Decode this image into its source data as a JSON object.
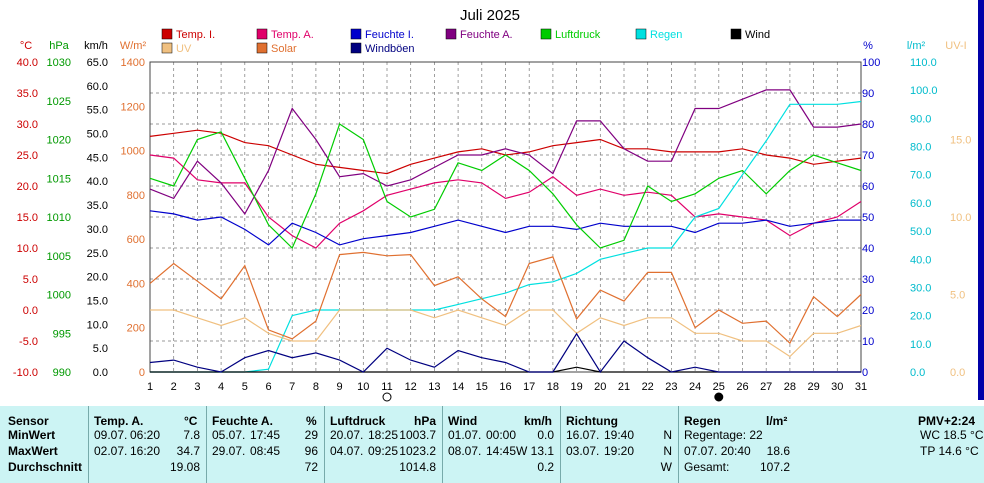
{
  "chart_data": {
    "type": "line",
    "title": "Juli 2025",
    "x": [
      1,
      2,
      3,
      4,
      5,
      6,
      7,
      8,
      9,
      10,
      11,
      12,
      13,
      14,
      15,
      16,
      17,
      18,
      19,
      20,
      21,
      22,
      23,
      24,
      25,
      26,
      27,
      28,
      29,
      30,
      31
    ],
    "x_ticks": [
      "1",
      "2",
      "3",
      "4",
      "5",
      "6",
      "7",
      "8",
      "9",
      "10",
      "11",
      "12",
      "13",
      "14",
      "15",
      "16",
      "17",
      "18",
      "19",
      "20",
      "21",
      "22",
      "23",
      "24",
      "25",
      "26",
      "27",
      "28",
      "29",
      "30",
      "31"
    ],
    "axes": [
      {
        "unit": "°C",
        "color": "#cc0000",
        "min": -10,
        "max": 40,
        "ticks": [
          "40.0",
          "35.0",
          "30.0",
          "25.0",
          "20.0",
          "15.0",
          "10.0",
          "5.0",
          "0.0",
          "-5.0",
          "-10.0"
        ]
      },
      {
        "unit": "hPa",
        "color": "#009900",
        "min": 990,
        "max": 1030,
        "ticks": [
          "1030",
          "1025",
          "1020",
          "1015",
          "1010",
          "1005",
          "1000",
          "995",
          "990"
        ]
      },
      {
        "unit": "km/h",
        "color": "#000000",
        "min": 0,
        "max": 65,
        "ticks": [
          "65.0",
          "60.0",
          "55.0",
          "50.0",
          "45.0",
          "40.0",
          "35.0",
          "30.0",
          "25.0",
          "20.0",
          "15.0",
          "10.0",
          "5.0",
          "0.0"
        ]
      },
      {
        "unit": "W/m²",
        "color": "#e07030",
        "min": 0,
        "max": 1400,
        "ticks": [
          "1400",
          "1200",
          "1000",
          "800",
          "600",
          "400",
          "200",
          "0"
        ]
      },
      {
        "unit": "%",
        "color": "#0000cc",
        "min": 0,
        "max": 100,
        "ticks": [
          "100",
          "90",
          "80",
          "70",
          "60",
          "50",
          "40",
          "30",
          "20",
          "10",
          "0"
        ]
      },
      {
        "unit": "l/m²",
        "color": "#00bbcc",
        "min": 0,
        "max": 110,
        "ticks": [
          "110.0",
          "100.0",
          "90.0",
          "80.0",
          "70.0",
          "60.0",
          "50.0",
          "40.0",
          "30.0",
          "20.0",
          "10.0",
          "0.0"
        ]
      },
      {
        "unit": "UV-I",
        "color": "#f0c080",
        "min": 0,
        "max": 20,
        "ticks": [
          "15.0",
          "10.0",
          "5.0",
          "0.0"
        ]
      }
    ],
    "legend": [
      {
        "name": "Temp. I.",
        "color": "#cc0000"
      },
      {
        "name": "Temp. A.",
        "color": "#e0006a"
      },
      {
        "name": "Feuchte I.",
        "color": "#0000cc"
      },
      {
        "name": "Feuchte A.",
        "color": "#800080"
      },
      {
        "name": "Luftdruck",
        "color": "#00cc00"
      },
      {
        "name": "Regen",
        "color": "#00e0e0"
      },
      {
        "name": "Wind",
        "color": "#000000"
      },
      {
        "name": "UV",
        "color": "#f0c080"
      },
      {
        "name": "Solar",
        "color": "#e07030"
      },
      {
        "name": "Windböen",
        "color": "#000080"
      }
    ],
    "series": [
      {
        "name": "Temp. I.",
        "axis": 0,
        "color": "#cc0000",
        "values": [
          28,
          28.5,
          29,
          28.5,
          27,
          26.5,
          25,
          23.5,
          23,
          22.5,
          22,
          23.5,
          24.5,
          25.5,
          26,
          25,
          25.5,
          26.5,
          27,
          27.5,
          26,
          26,
          25.5,
          25.5,
          25.5,
          26,
          25,
          24.5,
          23.5,
          24,
          24.5
        ]
      },
      {
        "name": "Temp. A.",
        "axis": 0,
        "color": "#e0006a",
        "values": [
          25,
          24.5,
          21,
          20.5,
          20.5,
          15,
          12,
          10,
          14,
          16,
          18.5,
          19.5,
          20.5,
          21,
          20.5,
          18,
          19,
          21.5,
          18.5,
          19.5,
          18.5,
          19,
          18.5,
          15,
          15.5,
          15,
          14.5,
          12,
          14,
          15,
          17.5
        ]
      },
      {
        "name": "Feuchte I.",
        "axis": 4,
        "color": "#0000cc",
        "values": [
          52,
          51,
          49,
          50,
          46,
          41,
          48,
          45,
          41,
          43,
          44,
          45,
          47,
          49,
          47,
          45,
          47,
          47,
          46,
          48,
          47,
          47,
          47,
          45,
          48,
          48,
          49,
          47,
          48,
          49,
          49
        ]
      },
      {
        "name": "Feuchte A.",
        "axis": 4,
        "color": "#800080",
        "values": [
          59,
          56,
          68,
          61,
          51,
          65,
          85,
          75,
          63,
          64,
          60,
          62,
          66,
          70,
          70,
          72,
          70,
          64,
          81,
          81,
          72,
          68,
          68,
          85,
          85,
          88,
          91,
          91,
          79,
          79,
          80
        ]
      },
      {
        "name": "Luftdruck",
        "axis": 1,
        "color": "#00cc00",
        "values": [
          1015,
          1014,
          1020,
          1021,
          1015,
          1009,
          1006,
          1013,
          1022,
          1020,
          1012,
          1010,
          1011,
          1017,
          1016,
          1018,
          1016,
          1013,
          1009,
          1006,
          1007,
          1014,
          1012,
          1013,
          1015,
          1016,
          1013,
          1016,
          1018,
          1017,
          1016
        ]
      },
      {
        "name": "Regen",
        "axis": 5,
        "color": "#00e0e0",
        "values": [
          0,
          0,
          0,
          0,
          0,
          1,
          20,
          22,
          22,
          22,
          22,
          22,
          22,
          24,
          26,
          28,
          31,
          32,
          35,
          40,
          42,
          44,
          44,
          55,
          58,
          70,
          82,
          95,
          95,
          95,
          96
        ]
      },
      {
        "name": "Wind",
        "axis": 2,
        "color": "#000000",
        "values": [
          0,
          0,
          0,
          0,
          0,
          0,
          0,
          0,
          0,
          0,
          0,
          0,
          0,
          0,
          0,
          0,
          0,
          0,
          1,
          0,
          0,
          0,
          0,
          0,
          0,
          0,
          0,
          0,
          0,
          0,
          0
        ]
      },
      {
        "name": "UV",
        "axis": 6,
        "color": "#f0c080",
        "values": [
          4,
          4,
          3.5,
          3,
          3.5,
          2.5,
          2,
          2,
          4,
          4,
          4,
          4,
          3.5,
          4,
          3.5,
          3,
          4,
          4,
          2.5,
          3.5,
          3,
          3.5,
          3.5,
          2.5,
          2.5,
          2,
          2,
          1,
          2.5,
          2.5,
          3
        ]
      },
      {
        "name": "Solar",
        "axis": 3,
        "color": "#e07030",
        "values": [
          400,
          490,
          410,
          330,
          480,
          190,
          150,
          230,
          530,
          540,
          525,
          530,
          390,
          430,
          330,
          250,
          490,
          520,
          240,
          370,
          320,
          450,
          450,
          200,
          280,
          220,
          230,
          130,
          340,
          250,
          350
        ]
      },
      {
        "name": "Windböen",
        "axis": 2,
        "color": "#000080",
        "values": [
          2,
          2.5,
          1,
          0,
          3,
          4.5,
          3,
          4,
          2.5,
          0,
          5,
          2.5,
          1,
          4.5,
          3,
          2,
          0,
          0,
          8,
          0,
          6.5,
          3,
          0,
          1,
          0,
          0,
          0,
          0,
          0,
          0,
          0
        ]
      }
    ],
    "grid": true,
    "legend_position": "top"
  },
  "table": {
    "headers": {
      "sensor": "Sensor",
      "temp": "Temp. A.",
      "temp_unit": "°C",
      "hum": "Feuchte A.",
      "hum_unit": "%",
      "press": "Luftdruck",
      "press_unit": "hPa",
      "wind": "Wind",
      "wind_unit": "km/h",
      "dir": "Richtung",
      "rain": "Regen",
      "rain_unit": "l/m²",
      "pmv": "PMV+2:24"
    },
    "rows": [
      {
        "label": "MinWert",
        "t_date": "09.07.",
        "t_time": "06:20",
        "t_val": "7.8",
        "h_date": "05.07.",
        "h_time": "17:45",
        "h_val": "29",
        "p_date": "20.07.",
        "p_time": "18:25",
        "p_val": "1003.7",
        "w_date": "01.07.",
        "w_time": "00:00",
        "w_val": "0.0",
        "d_date": "16.07.",
        "d_time": "19:40",
        "d_val": "N",
        "r_label": "Regentage: 22",
        "r_val": "",
        "x": "WC 18.5 °C"
      },
      {
        "label": "MaxWert",
        "t_date": "02.07.",
        "t_time": "16:20",
        "t_val": "34.7",
        "h_date": "29.07.",
        "h_time": "08:45",
        "h_val": "96",
        "p_date": "04.07.",
        "p_time": "09:25",
        "p_val": "1023.2",
        "w_date": "08.07.",
        "w_time": "14:45",
        "w_val": "W 13.1",
        "d_date": "03.07.",
        "d_time": "19:20",
        "d_val": "N",
        "r_label": "07.07.  20:40",
        "r_val": "18.6",
        "x": "TP 14.6 °C"
      },
      {
        "label": "Durchschnitt",
        "t_date": "",
        "t_time": "",
        "t_val": "19.08",
        "h_date": "",
        "h_time": "",
        "h_val": "72",
        "p_date": "",
        "p_time": "",
        "p_val": "1014.8",
        "w_date": "",
        "w_time": "",
        "w_val": "0.2",
        "d_date": "",
        "d_time": "",
        "d_val": "W",
        "r_label": "Gesamt:",
        "r_val": "107.2",
        "x": ""
      }
    ]
  }
}
